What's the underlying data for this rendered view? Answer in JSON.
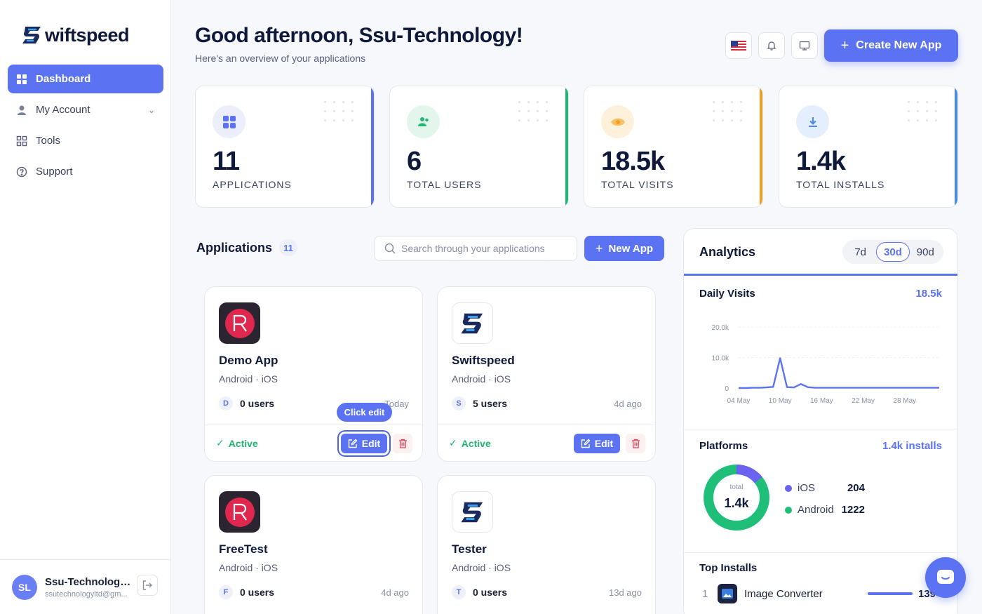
{
  "brand": {
    "logo_text": "wiftspeed"
  },
  "sidebar": {
    "items": [
      {
        "label": "Dashboard",
        "icon": "grid-icon",
        "active": true
      },
      {
        "label": "My Account",
        "icon": "user-icon"
      },
      {
        "label": "Tools",
        "icon": "tools-icon"
      },
      {
        "label": "Support",
        "icon": "help-icon"
      }
    ],
    "user": {
      "initials": "SL",
      "name": "Ssu-Technology...",
      "email": "ssutechnologyltd@gm..."
    }
  },
  "header": {
    "greeting": "Good afternoon, Ssu-Technology!",
    "subtitle": "Here's an overview of your applications",
    "create_label": "Create New App"
  },
  "stats": [
    {
      "value": "11",
      "label": "APPLICATIONS",
      "color": "#5b73f2"
    },
    {
      "value": "6",
      "label": "TOTAL USERS",
      "color": "#22b573"
    },
    {
      "value": "18.5k",
      "label": "TOTAL VISITS",
      "color": "#f0a020"
    },
    {
      "value": "1.4k",
      "label": "TOTAL INSTALLS",
      "color": "#4a8af0"
    }
  ],
  "applications": {
    "title": "Applications",
    "count": "11",
    "search_placeholder": "Search through your applications",
    "new_label": "New App",
    "cards": [
      {
        "name": "Demo App",
        "platforms": "Android · iOS",
        "initial": "D",
        "users": "0 users",
        "time": "Today",
        "status": "Active",
        "edit": "Edit"
      },
      {
        "name": "Swiftspeed",
        "platforms": "Android · iOS",
        "initial": "S",
        "users": "5 users",
        "time": "4d ago",
        "status": "Active",
        "edit": "Edit"
      },
      {
        "name": "FreeTest",
        "platforms": "Android · iOS",
        "initial": "F",
        "users": "0 users",
        "time": "4d ago"
      },
      {
        "name": "Tester",
        "platforms": "Android · iOS",
        "initial": "T",
        "users": "0 users",
        "time": "13d ago"
      }
    ],
    "tooltip": "Click edit"
  },
  "analytics": {
    "title": "Analytics",
    "ranges": [
      "7d",
      "30d",
      "90d"
    ],
    "selected_range": "30d",
    "daily_visits_label": "Daily Visits",
    "daily_visits_total": "18.5k",
    "platforms_label": "Platforms",
    "platforms_total": "1.4k installs",
    "donut_caption": "total",
    "donut_value": "1.4k",
    "platforms": [
      {
        "name": "iOS",
        "value": "204",
        "color": "#6b63f0"
      },
      {
        "name": "Android",
        "value": "1222",
        "color": "#1fbf7a"
      }
    ],
    "top_installs_label": "Top Installs",
    "top_installs": [
      {
        "rank": "1",
        "name": "Image Converter",
        "value": "139"
      }
    ]
  },
  "chart_data": {
    "type": "line",
    "title": "Daily Visits",
    "x_ticks": [
      "04 May",
      "10 May",
      "16 May",
      "22 May",
      "28 May"
    ],
    "y_ticks": [
      "20.0k",
      "10.0k",
      "0"
    ],
    "ylim": [
      0,
      20000
    ],
    "series": [
      {
        "values": [
          0,
          0,
          100,
          100,
          200,
          400,
          9800,
          300,
          200,
          1300,
          300,
          100,
          100,
          100,
          100,
          100,
          100,
          100,
          100,
          100,
          100,
          100,
          100,
          100,
          100,
          100,
          100,
          100,
          100,
          100
        ],
        "color": "#5b73f2"
      }
    ],
    "grid": true
  }
}
